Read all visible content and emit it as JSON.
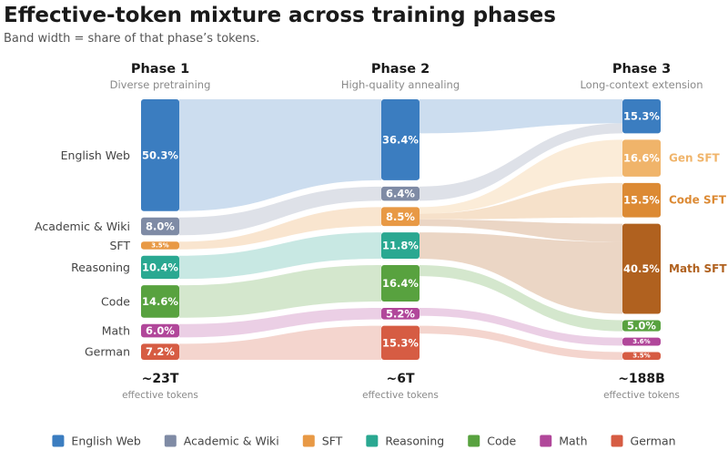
{
  "chart_data": {
    "type": "sankey",
    "title": "Effective-token mixture across training phases",
    "subtitle": "Band width = share of that phase’s tokens.",
    "phases": [
      {
        "name": "Phase 1",
        "description": "Diverse pretraining",
        "total": "~23T",
        "total_label": "effective tokens",
        "nodes": [
          {
            "id": "english_web",
            "label": "English Web",
            "value": 50.3,
            "display": "50.3%"
          },
          {
            "id": "academic",
            "label": "Academic & Wiki",
            "value": 8.0,
            "display": "8.0%"
          },
          {
            "id": "sft",
            "label": "SFT",
            "value": 3.5,
            "display": "3.5%"
          },
          {
            "id": "reasoning",
            "label": "Reasoning",
            "value": 10.4,
            "display": "10.4%"
          },
          {
            "id": "code",
            "label": "Code",
            "value": 14.6,
            "display": "14.6%"
          },
          {
            "id": "math",
            "label": "Math",
            "value": 6.0,
            "display": "6.0%"
          },
          {
            "id": "german",
            "label": "German",
            "value": 7.2,
            "display": "7.2%"
          }
        ]
      },
      {
        "name": "Phase 2",
        "description": "High-quality annealing",
        "total": "~6T",
        "total_label": "effective tokens",
        "nodes": [
          {
            "id": "english_web",
            "value": 36.4,
            "display": "36.4%"
          },
          {
            "id": "academic",
            "value": 6.4,
            "display": "6.4%"
          },
          {
            "id": "sft",
            "value": 8.5,
            "display": "8.5%"
          },
          {
            "id": "reasoning",
            "value": 11.8,
            "display": "11.8%"
          },
          {
            "id": "code",
            "value": 16.4,
            "display": "16.4%"
          },
          {
            "id": "math",
            "value": 5.2,
            "display": "5.2%"
          },
          {
            "id": "german",
            "value": 15.3,
            "display": "15.3%"
          }
        ]
      },
      {
        "name": "Phase 3",
        "description": "Long-context extension",
        "total": "~188B",
        "total_label": "effective tokens",
        "nodes": [
          {
            "id": "english_web",
            "value": 15.3,
            "display": "15.3%"
          },
          {
            "id": "gen_sft",
            "label": "Gen SFT",
            "value": 16.6,
            "display": "16.6%",
            "color": "#f0b46a"
          },
          {
            "id": "code_sft",
            "label": "Code SFT",
            "value": 15.5,
            "display": "15.5%",
            "color": "#dc8a34"
          },
          {
            "id": "math_sft",
            "label": "Math SFT",
            "value": 40.5,
            "display": "40.5%",
            "color": "#b0611f"
          },
          {
            "id": "code",
            "value": 5.0,
            "display": "5.0%"
          },
          {
            "id": "math",
            "value": 3.6,
            "display": "3.6%"
          },
          {
            "id": "german",
            "value": 3.5,
            "display": "3.5%"
          }
        ]
      }
    ],
    "flows_phase2_to_phase3": [
      {
        "from": "english_web",
        "to": "english_web",
        "value": 15.3
      },
      {
        "from": "academic",
        "to": "english_web",
        "value": 6.4
      },
      {
        "from": "sft",
        "to": "gen_sft",
        "value": 3.0
      },
      {
        "from": "sft",
        "to": "code_sft",
        "value": 2.5
      },
      {
        "from": "sft",
        "to": "math_sft",
        "value": 3.0
      },
      {
        "from": "reasoning",
        "to": "math_sft",
        "value": 11.8
      },
      {
        "from": "code",
        "to": "code",
        "value": 5.0
      },
      {
        "from": "math",
        "to": "math",
        "value": 3.6
      },
      {
        "from": "german",
        "to": "german",
        "value": 3.5
      }
    ],
    "legend": [
      {
        "id": "english_web",
        "label": "English Web",
        "color": "#3b7dc0"
      },
      {
        "id": "academic",
        "label": "Academic & Wiki",
        "color": "#7f8ba5"
      },
      {
        "id": "sft",
        "label": "SFT",
        "color": "#e89945"
      },
      {
        "id": "reasoning",
        "label": "Reasoning",
        "color": "#2aa891"
      },
      {
        "id": "code",
        "label": "Code",
        "color": "#58a23f"
      },
      {
        "id": "math",
        "label": "Math",
        "color": "#b1479a"
      },
      {
        "id": "german",
        "label": "German",
        "color": "#d65c43"
      }
    ],
    "legend_position": "bottom"
  }
}
